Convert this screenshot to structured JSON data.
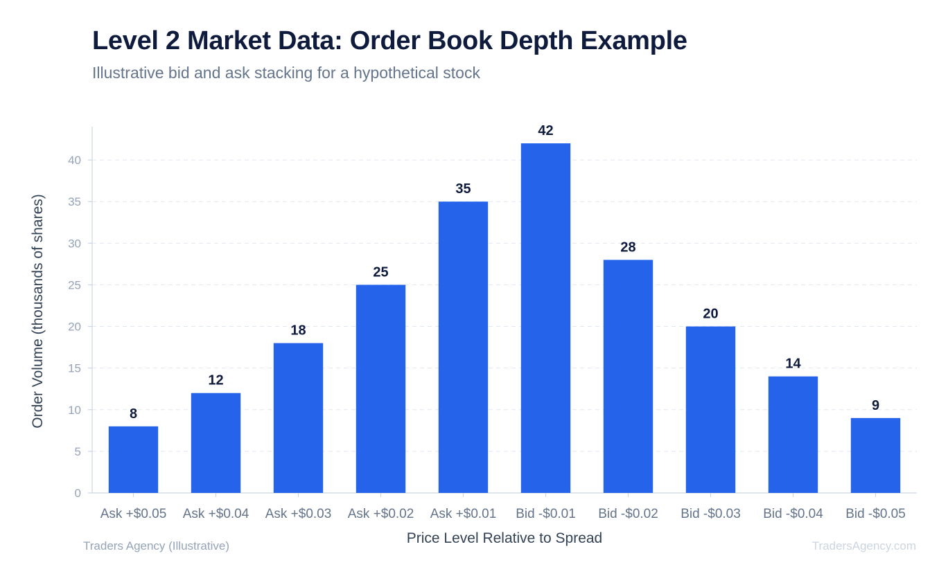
{
  "header": {
    "title": "Level 2 Market Data: Order Book Depth Example",
    "subtitle": "Illustrative bid and ask stacking for a hypothetical stock"
  },
  "footer": {
    "source": "Traders Agency (Illustrative)",
    "watermark": "TradersAgency.com"
  },
  "chart_data": {
    "type": "bar",
    "categories": [
      "Ask +$0.05",
      "Ask +$0.04",
      "Ask +$0.03",
      "Ask +$0.02",
      "Ask +$0.01",
      "Bid -$0.01",
      "Bid -$0.02",
      "Bid -$0.03",
      "Bid -$0.04",
      "Bid -$0.05"
    ],
    "values": [
      8,
      12,
      18,
      25,
      35,
      42,
      28,
      20,
      14,
      9
    ],
    "xlabel": "Price Level Relative to Spread",
    "ylabel": "Order Volume (thousands of shares)",
    "ylim": [
      0,
      44
    ],
    "yticks": [
      0,
      5,
      10,
      15,
      20,
      25,
      30,
      35,
      40
    ],
    "grid": true,
    "bar_color": "#2563eb",
    "data_labels": true
  }
}
